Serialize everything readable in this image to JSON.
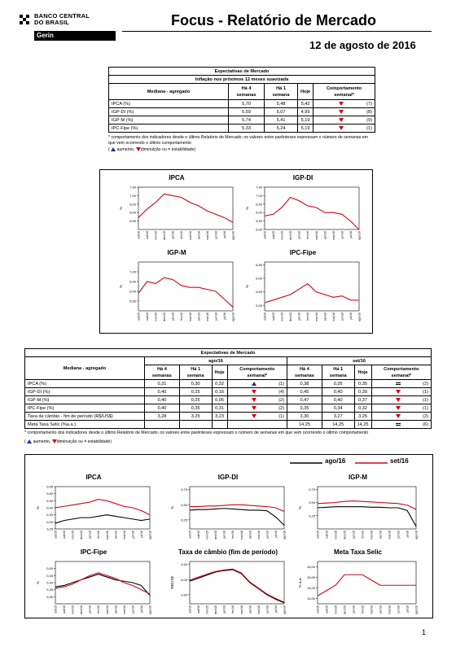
{
  "header": {
    "org_line1": "BANCO CENTRAL",
    "org_line2": "DO BRASIL",
    "dept": "Gerin",
    "title": "Focus - Relatório de Mercado",
    "date": "12 de agosto de 2016"
  },
  "table1": {
    "title1": "Expectativas de Mercado",
    "title2": "Inflação nos próximos 12 meses suavizada",
    "col_label": "Mediana - agregado",
    "col_h4": "Há 4 semanas",
    "col_h1": "Há 1 semana",
    "col_hoje": "Hoje",
    "col_comp": "Comportamento semanal*",
    "rows": [
      {
        "label": "IPCA (%)",
        "h4": "5,70",
        "h1": "5,48",
        "hoje": "5,42",
        "trend": "down",
        "count": "(7)"
      },
      {
        "label": "IGP-DI (%)",
        "h4": "5,59",
        "h1": "5,07",
        "hoje": "4,99",
        "trend": "down",
        "count": "(8)"
      },
      {
        "label": "IGP-M (%)",
        "h4": "5,74",
        "h1": "5,41",
        "hoje": "5,19",
        "trend": "down",
        "count": "(9)"
      },
      {
        "label": "IPC-Fipe (%)",
        "h4": "5,33",
        "h1": "5,24",
        "hoje": "5,19",
        "trend": "down",
        "count": "(1)"
      }
    ],
    "note1": "* comportamento dos indicadores desde o último Relatório de Mercado; os valores entre parênteses expressam o número de semanas em que vem ocorrendo o último comportamento",
    "legend_up": "aumento,",
    "legend_down": "diminuição ou",
    "legend_eq": "= estabilidade)"
  },
  "table2": {
    "title": "Expectativas de Mercado",
    "col_label": "Mediana - agregado",
    "group1": "ago/16",
    "group2": "set/16",
    "col_h4": "Há 4 semanas",
    "col_h1": "Há 1 semana",
    "col_hoje": "Hoje",
    "col_comp": "Comportamento semanal*",
    "rows": [
      {
        "label": "IPCA (%)",
        "a": [
          "0,31",
          "0,30",
          "0,32"
        ],
        "at": "up",
        "ac": "(1)",
        "b": [
          "0,38",
          "0,35",
          "0,35"
        ],
        "bt": "eq",
        "bc": "(2)"
      },
      {
        "label": "IGP-DI (%)",
        "a": [
          "0,40",
          "0,25",
          "0,16"
        ],
        "at": "down",
        "ac": "(4)",
        "b": [
          "0,45",
          "0,40",
          "0,39"
        ],
        "bt": "down",
        "bc": "(1)"
      },
      {
        "label": "IGP-M (%)",
        "a": [
          "0,40",
          "0,25",
          "0,05"
        ],
        "at": "down",
        "ac": "(2)",
        "b": [
          "0,47",
          "0,40",
          "0,37"
        ],
        "bt": "down",
        "bc": "(1)"
      },
      {
        "label": "IPC-Fipe (%)",
        "a": [
          "0,40",
          "0,35",
          "0,31"
        ],
        "at": "down",
        "ac": "(2)",
        "b": [
          "0,35",
          "0,34",
          "0,32"
        ],
        "bt": "down",
        "bc": "(1)"
      },
      {
        "label": "Taxa de câmbio - fim de período (R$/US$)",
        "a": [
          "3,28",
          "3,25",
          "3,23"
        ],
        "at": "down",
        "ac": "(1)",
        "b": [
          "3,30",
          "3,27",
          "3,25"
        ],
        "bt": "down",
        "bc": "(2)"
      },
      {
        "label": "Meta Taxa Selic (%a.a.)",
        "a": [
          "",
          "",
          ""
        ],
        "at": "",
        "ac": "",
        "b": [
          "14,25",
          "14,25",
          "14,25"
        ],
        "bt": "eq",
        "bc": "(6)"
      }
    ],
    "note": "* comportamento dos indicadores desde o último Relatório de Mercado; os valores entre parênteses expressam o número de semanas em que vem ocorrendo o último comportamento"
  },
  "legend2": {
    "s1": "ago/16",
    "s2": "set/16",
    "c1": "#000000",
    "c2": "#d0021b"
  },
  "chart_data": [
    {
      "type": "line",
      "title": "IPCA",
      "ylabel": "%",
      "ylim": [
        5.0,
        7.5
      ],
      "yticks": [
        "5,50",
        "6,00",
        "6,50",
        "7,00",
        "7,50"
      ],
      "x": [
        "set/15",
        "out/15",
        "nov/15",
        "dez/15",
        "jan/16",
        "fev/16",
        "mar/16",
        "abr/16",
        "mai/16",
        "jun/16",
        "jul/16",
        "ago/16"
      ],
      "series": [
        {
          "color": "#d0021b",
          "values": [
            5.7,
            6.2,
            6.6,
            7.1,
            7.0,
            6.9,
            6.6,
            6.4,
            6.1,
            5.9,
            5.7,
            5.42
          ]
        }
      ]
    },
    {
      "type": "line",
      "title": "IGP-DI",
      "ylabel": "%",
      "ylim": [
        5.0,
        7.5
      ],
      "yticks": [
        "5,00",
        "5,50",
        "6,00",
        "6,50",
        "7,00",
        "7,50"
      ],
      "x": [
        "set/15",
        "out/15",
        "nov/15",
        "dez/15",
        "jan/16",
        "fev/16",
        "mar/16",
        "abr/16",
        "mai/16",
        "jun/16",
        "jul/16",
        "ago/16"
      ],
      "series": [
        {
          "color": "#d0021b",
          "values": [
            5.8,
            5.9,
            6.3,
            6.9,
            6.7,
            6.4,
            6.3,
            6.0,
            6.0,
            5.9,
            5.5,
            4.99
          ]
        }
      ]
    },
    {
      "type": "line",
      "title": "IGP-M",
      "ylabel": "%",
      "ylim": [
        5.0,
        7.5
      ],
      "yticks": [
        "5,50",
        "6,00",
        "6,50",
        "7,00"
      ],
      "x": [
        "set/15",
        "out/15",
        "nov/15",
        "dez/15",
        "jan/16",
        "fev/16",
        "mar/16",
        "abr/16",
        "mai/16",
        "jun/16",
        "jul/16",
        "ago/16"
      ],
      "series": [
        {
          "color": "#d0021b",
          "values": [
            5.9,
            6.5,
            6.4,
            6.7,
            6.6,
            6.3,
            6.2,
            6.2,
            6.1,
            6.0,
            5.6,
            5.19
          ]
        }
      ]
    },
    {
      "type": "line",
      "title": "IPC-Fipe",
      "ylabel": "%",
      "ylim": [
        4.8,
        6.6
      ],
      "yticks": [
        "5,00",
        "5,50",
        "6,00",
        "6,50"
      ],
      "x": [
        "set/15",
        "out/15",
        "nov/15",
        "dez/15",
        "jan/16",
        "fev/16",
        "mar/16",
        "abr/16",
        "mai/16",
        "jun/16",
        "jul/16",
        "ago/16"
      ],
      "series": [
        {
          "color": "#d0021b",
          "values": [
            5.1,
            5.2,
            5.3,
            5.4,
            5.6,
            5.8,
            5.5,
            5.4,
            5.3,
            5.35,
            5.2,
            5.19
          ]
        }
      ]
    },
    {
      "type": "line",
      "title": "IPCA",
      "ylabel": "%",
      "ylim": [
        0.25,
        0.55
      ],
      "yticks": [
        "0,25",
        "0,30",
        "0,35",
        "0,40",
        "0,45",
        "0,50",
        "0,55"
      ],
      "x": [
        "set/15",
        "out/15",
        "nov/15",
        "dez/15",
        "jan/16",
        "fev/16",
        "mar/16",
        "abr/16",
        "mai/16",
        "jun/16",
        "jul/16",
        "ago/16"
      ],
      "series": [
        {
          "name": "ago/16",
          "color": "#000000",
          "values": [
            0.29,
            0.31,
            0.32,
            0.33,
            0.33,
            0.34,
            0.35,
            0.34,
            0.33,
            0.32,
            0.31,
            0.32
          ]
        },
        {
          "name": "set/16",
          "color": "#d0021b",
          "values": [
            0.4,
            0.41,
            0.42,
            0.43,
            0.44,
            0.46,
            0.45,
            0.43,
            0.41,
            0.4,
            0.38,
            0.35
          ]
        }
      ]
    },
    {
      "type": "line",
      "title": "IGP-DI",
      "ylabel": "%",
      "ylim": [
        0.1,
        0.8
      ],
      "yticks": [
        "0,25",
        "0,50",
        "0,75"
      ],
      "x": [
        "set/15",
        "out/15",
        "nov/15",
        "dez/15",
        "jan/16",
        "fev/16",
        "mar/16",
        "abr/16",
        "mai/16",
        "jun/16",
        "jul/16",
        "ago/16"
      ],
      "series": [
        {
          "name": "ago/16",
          "color": "#000000",
          "values": [
            0.41,
            0.42,
            0.42,
            0.43,
            0.44,
            0.43,
            0.42,
            0.41,
            0.41,
            0.4,
            0.3,
            0.16
          ]
        },
        {
          "name": "set/16",
          "color": "#d0021b",
          "values": [
            0.47,
            0.47,
            0.48,
            0.48,
            0.49,
            0.5,
            0.5,
            0.49,
            0.48,
            0.47,
            0.45,
            0.39
          ]
        }
      ]
    },
    {
      "type": "line",
      "title": "IGP-M",
      "ylabel": "%",
      "ylim": [
        0.0,
        0.8
      ],
      "yticks": [
        "0,25",
        "0,50",
        "0,75"
      ],
      "x": [
        "set/15",
        "out/15",
        "nov/15",
        "dez/15",
        "jan/16",
        "fev/16",
        "mar/16",
        "abr/16",
        "mai/16",
        "jun/16",
        "jul/16",
        "ago/16"
      ],
      "series": [
        {
          "name": "ago/16",
          "color": "#000000",
          "values": [
            0.4,
            0.41,
            0.42,
            0.42,
            0.42,
            0.42,
            0.41,
            0.41,
            0.4,
            0.4,
            0.35,
            0.05
          ]
        },
        {
          "name": "set/16",
          "color": "#d0021b",
          "values": [
            0.48,
            0.49,
            0.5,
            0.52,
            0.53,
            0.52,
            0.51,
            0.5,
            0.49,
            0.48,
            0.45,
            0.37
          ]
        }
      ]
    },
    {
      "type": "line",
      "title": "IPC-Fipe",
      "ylabel": "%",
      "ylim": [
        0.25,
        0.55
      ],
      "yticks": [
        "0,30",
        "0,35",
        "0,40",
        "0,45",
        "0,50"
      ],
      "x": [
        "set/15",
        "out/15",
        "nov/15",
        "dez/15",
        "jan/16",
        "fev/16",
        "mar/16",
        "abr/16",
        "mai/16",
        "jun/16",
        "jul/16",
        "ago/16"
      ],
      "series": [
        {
          "name": "ago/16",
          "color": "#000000",
          "values": [
            0.37,
            0.38,
            0.4,
            0.42,
            0.44,
            0.46,
            0.44,
            0.42,
            0.41,
            0.4,
            0.38,
            0.31
          ]
        },
        {
          "name": "set/16",
          "color": "#d0021b",
          "values": [
            0.36,
            0.37,
            0.39,
            0.42,
            0.45,
            0.47,
            0.45,
            0.43,
            0.4,
            0.38,
            0.35,
            0.32
          ]
        }
      ]
    },
    {
      "type": "line",
      "title": "Taxa de câmbio (fim de período)",
      "ylabel": "R$/US$",
      "ylim": [
        3.2,
        4.6
      ],
      "yticks": [
        "3,50",
        "4,00",
        "4,50"
      ],
      "x": [
        "set/15",
        "out/15",
        "nov/15",
        "dez/15",
        "jan/16",
        "fev/16",
        "mar/16",
        "abr/16",
        "mai/16",
        "jun/16",
        "jul/16",
        "ago/16"
      ],
      "series": [
        {
          "name": "ago/16",
          "color": "#000000",
          "values": [
            3.95,
            4.05,
            4.15,
            4.25,
            4.3,
            4.33,
            4.2,
            3.9,
            3.7,
            3.5,
            3.35,
            3.23
          ]
        },
        {
          "name": "set/16",
          "color": "#d0021b",
          "values": [
            3.98,
            4.08,
            4.18,
            4.27,
            4.32,
            4.35,
            4.22,
            3.92,
            3.72,
            3.52,
            3.38,
            3.25
          ]
        }
      ]
    },
    {
      "type": "line",
      "title": "Meta Taxa Selic",
      "ylabel": "% a.a.",
      "ylim": [
        12.5,
        16.5
      ],
      "yticks": [
        "13,00",
        "14,00",
        "15,00",
        "16,00"
      ],
      "x": [
        "set/15",
        "out/15",
        "nov/15",
        "dez/15",
        "jan/16",
        "fev/16",
        "mar/16",
        "abr/16",
        "mai/16",
        "jun/16",
        "jul/16",
        "ago/16"
      ],
      "series": [
        {
          "name": "set/16",
          "color": "#d0021b",
          "values": [
            13.25,
            13.75,
            14.25,
            15.25,
            15.25,
            15.25,
            14.75,
            14.25,
            14.25,
            14.25,
            14.25,
            14.25
          ]
        }
      ]
    }
  ],
  "page_number": "1"
}
